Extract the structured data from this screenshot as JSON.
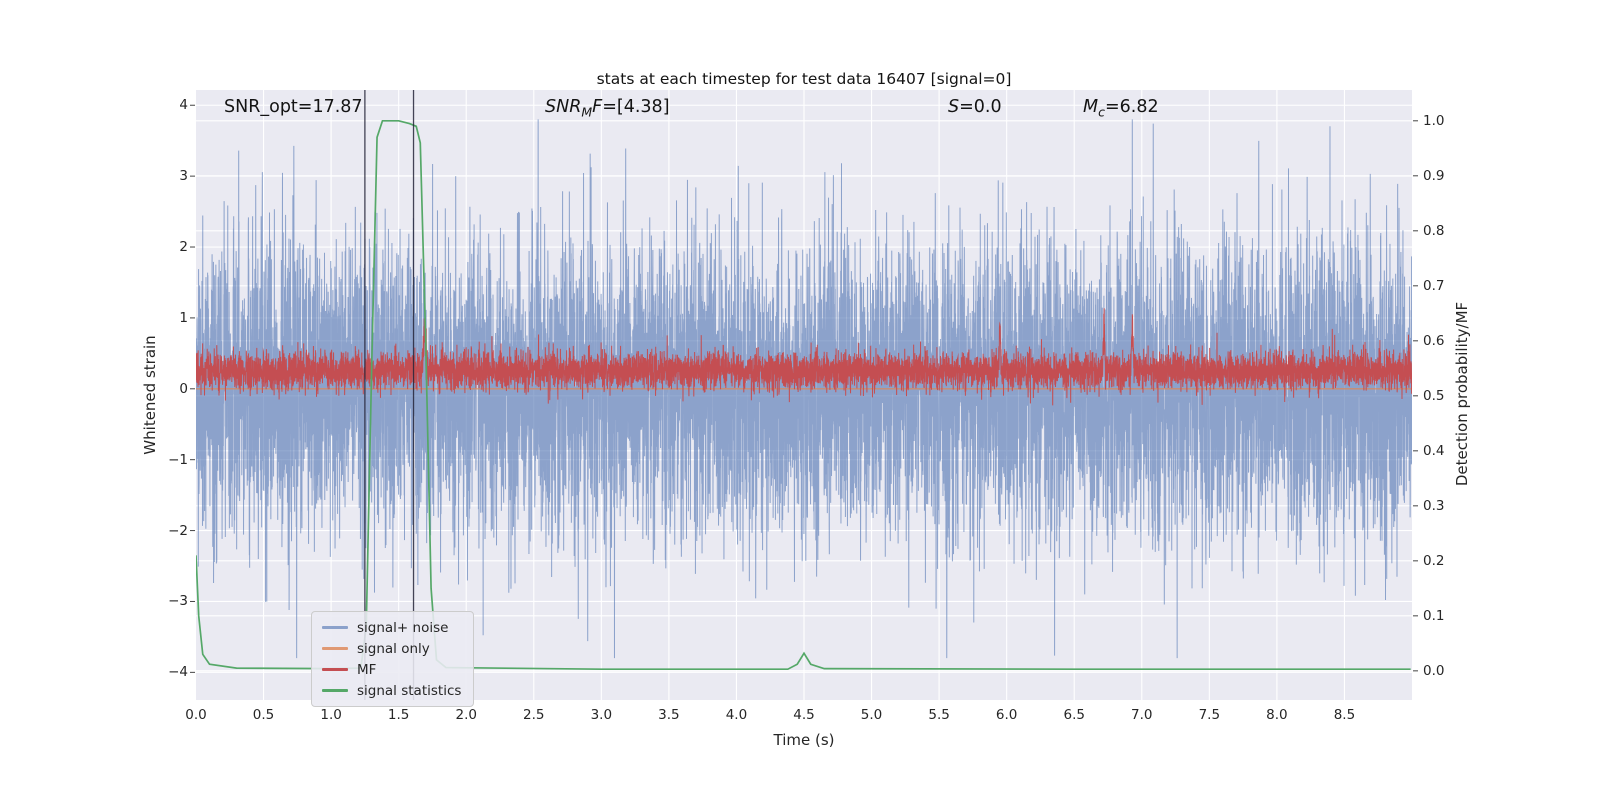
{
  "chart_data": {
    "type": "line",
    "title": "stats at each timestep for test data 16407 [signal=0]",
    "xlabel": "Time (s)",
    "ylabel_left": "Whitened strain",
    "ylabel_right": "Detection probability/MF",
    "plot_bg": "#eaeaf2",
    "grid_color": "#ffffff",
    "grid": "white gridlines on both axes ticks, seaborn darkgrid style",
    "x_range": [
      0,
      9.0
    ],
    "y_left_range": [
      -4.39,
      4.215
    ],
    "y_right_range": [
      -0.053,
      1.056
    ],
    "x_ticks": {
      "values": [
        0,
        0.5,
        1,
        1.5,
        2,
        2.5,
        3,
        3.5,
        4,
        4.5,
        5,
        5.5,
        6,
        6.5,
        7,
        7.5,
        8,
        8.5
      ],
      "labels": [
        "0.0",
        "0.5",
        "1.0",
        "1.5",
        "2.0",
        "2.5",
        "3.0",
        "3.5",
        "4.0",
        "4.5",
        "5.0",
        "5.5",
        "6.0",
        "6.5",
        "7.0",
        "7.5",
        "8.0",
        "8.5"
      ]
    },
    "y_left_ticks": {
      "values": [
        4,
        3,
        2,
        1,
        0,
        -1,
        -2,
        -3,
        -4
      ],
      "labels": [
        "4",
        "3",
        "2",
        "1",
        "0",
        "−1",
        "−2",
        "−3",
        "−4"
      ]
    },
    "y_right_ticks": {
      "values": [
        1.0,
        0.9,
        0.8,
        0.7,
        0.6,
        0.5,
        0.4,
        0.3,
        0.2,
        0.1,
        0.0
      ],
      "labels": [
        "1.0",
        "0.9",
        "0.8",
        "0.7",
        "0.6",
        "0.5",
        "0.4",
        "0.3",
        "0.2",
        "0.1",
        "0.0"
      ]
    },
    "annotations": {
      "snr_opt": {
        "text": "SNR_opt=17.87"
      },
      "snr_mf": {
        "pre": "SNR",
        "sub": "M",
        "mid": "F",
        "rest": "=[4.38]"
      },
      "s": {
        "pre": "S",
        "rest": "=0.0"
      },
      "mc": {
        "pre": "M",
        "sub": "c",
        "rest": "=6.82"
      }
    },
    "marker_lines_x": [
      1.25,
      1.61
    ],
    "marker_color": "#26263a",
    "series": [
      {
        "name": "signal+ noise",
        "color": "#4c72b0",
        "alpha": 0.6,
        "axis": "left",
        "kind": "gaussian-noise",
        "mean": 0,
        "std": 1.05,
        "clip_min": -3.8,
        "clip_max": 3.8,
        "n": 9000
      },
      {
        "name": "signal only",
        "color": "#dd8452",
        "alpha": 0.8,
        "axis": "left",
        "kind": "constant",
        "value": 0
      },
      {
        "name": "MF",
        "color": "#c44e52",
        "alpha": 1,
        "axis": "right",
        "kind": "gaussian-noise",
        "mean": 0.545,
        "std": 0.017,
        "clip_min": 0.47,
        "clip_max": 0.66,
        "n": 9000,
        "spike_times": [
          1.69,
          5.95,
          6.72,
          6.93
        ],
        "spike_height": 0.085,
        "spike_width": 0.012,
        "random_spike_prob": 0.004,
        "random_spike_max": 0.07
      },
      {
        "name": "signal statistics",
        "color": "#55a868",
        "alpha": 1,
        "axis": "right",
        "kind": "keypoints",
        "points": [
          [
            0,
            0.21
          ],
          [
            0.02,
            0.1
          ],
          [
            0.05,
            0.03
          ],
          [
            0.1,
            0.012
          ],
          [
            0.3,
            0.005
          ],
          [
            1.0,
            0.004
          ],
          [
            1.22,
            0.005
          ],
          [
            1.26,
            0.08
          ],
          [
            1.3,
            0.55
          ],
          [
            1.34,
            0.97
          ],
          [
            1.38,
            1.0
          ],
          [
            1.5,
            1.0
          ],
          [
            1.58,
            0.995
          ],
          [
            1.63,
            0.99
          ],
          [
            1.66,
            0.96
          ],
          [
            1.7,
            0.6
          ],
          [
            1.74,
            0.15
          ],
          [
            1.78,
            0.02
          ],
          [
            1.85,
            0.006
          ],
          [
            3.0,
            0.003
          ],
          [
            4.38,
            0.003
          ],
          [
            4.45,
            0.012
          ],
          [
            4.5,
            0.032
          ],
          [
            4.55,
            0.012
          ],
          [
            4.65,
            0.004
          ],
          [
            6.5,
            0.003
          ],
          [
            8.99,
            0.003
          ]
        ]
      }
    ],
    "legend": {
      "position": "lower left",
      "entries": [
        {
          "label": "signal+ noise",
          "color": "#4c72b0",
          "alpha": 0.6
        },
        {
          "label": "signal only",
          "color": "#dd8452",
          "alpha": 0.8
        },
        {
          "label": "MF",
          "color": "#c44e52",
          "alpha": 1
        },
        {
          "label": "signal statistics",
          "color": "#55a868",
          "alpha": 1
        }
      ]
    }
  }
}
